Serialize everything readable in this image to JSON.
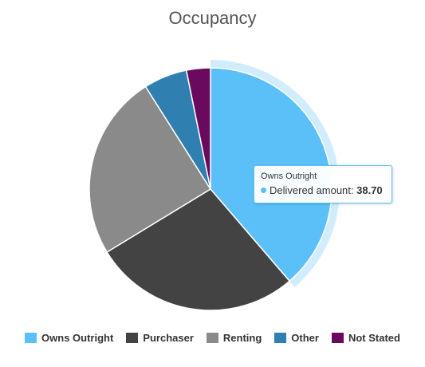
{
  "chart_data": {
    "type": "pie",
    "title": "Occupancy",
    "categories": [
      "Owns Outright",
      "Purchaser",
      "Renting",
      "Other",
      "Not Stated"
    ],
    "values": [
      38.7,
      27.6,
      24.7,
      5.8,
      3.2
    ],
    "colors": [
      "#5bc0f8",
      "#434343",
      "#8a8a8a",
      "#2f7fb1",
      "#6a0a5f"
    ],
    "highlighted": "Owns Outright",
    "legend_position": "bottom"
  },
  "tooltip": {
    "title": "Owns Outright",
    "series_label": "Delivered amount:",
    "value": "38.70",
    "color": "#5bc0f8"
  },
  "legend": {
    "items": [
      {
        "label": "Owns Outright",
        "color": "#5bc0f8"
      },
      {
        "label": "Purchaser",
        "color": "#434343"
      },
      {
        "label": "Renting",
        "color": "#8a8a8a"
      },
      {
        "label": "Other",
        "color": "#2f7fb1"
      },
      {
        "label": "Not Stated",
        "color": "#6a0a5f"
      }
    ]
  }
}
